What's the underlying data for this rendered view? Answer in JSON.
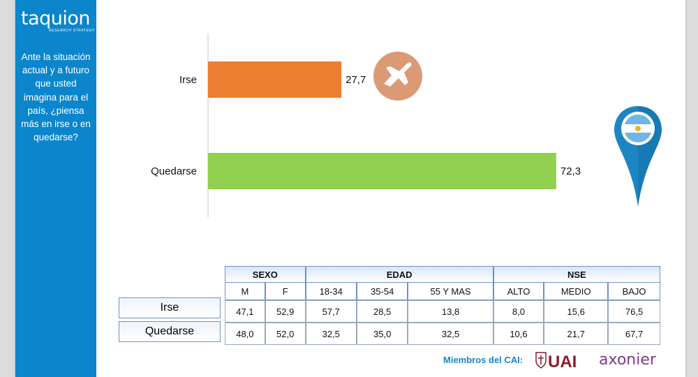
{
  "brand": {
    "name": "taquion",
    "tagline": "RESEARCH STRATEGY"
  },
  "sidebar": {
    "question": "Ante la situación actual y a futuro que usted imagina para el país, ¿piensa más en irse  o en quedarse?"
  },
  "chart_data": {
    "type": "bar",
    "orientation": "horizontal",
    "categories": [
      "Irse",
      "Quedarse"
    ],
    "values": [
      27.7,
      72.3
    ],
    "value_labels": [
      "27,7",
      "72,3"
    ],
    "colors": [
      "#ed7d31",
      "#92d050"
    ],
    "xlim": [
      0,
      100
    ]
  },
  "table": {
    "groups": [
      {
        "label": "SEXO",
        "span": 2
      },
      {
        "label": "EDAD",
        "span": 3
      },
      {
        "label": "NSE",
        "span": 3
      }
    ],
    "columns": [
      "M",
      "F",
      "18-34",
      "35-54",
      "55 Y MAS",
      "ALTO",
      "MEDIO",
      "BAJO"
    ],
    "rows": [
      {
        "label": "Irse",
        "values": [
          "47,1",
          "52,9",
          "57,7",
          "28,5",
          "13,8",
          "8,0",
          "15,6",
          "76,5"
        ]
      },
      {
        "label": "Quedarse",
        "values": [
          "48,0",
          "52,0",
          "32,5",
          "35,0",
          "32,5",
          "10,6",
          "21,7",
          "67,7"
        ]
      }
    ]
  },
  "footer": {
    "members_label": "Miembros del CAI:",
    "logo_uai": "UAI",
    "logo_axonier": "axonier"
  },
  "icons": {
    "irse": "airplane-icon",
    "quedarse": "argentina-map-pin-icon"
  }
}
